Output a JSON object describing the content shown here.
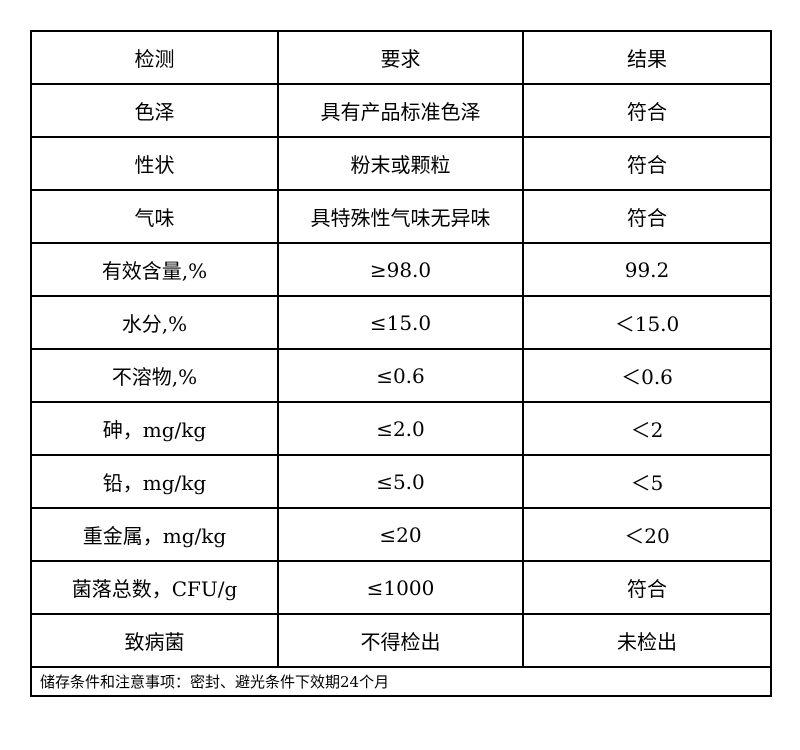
{
  "table": {
    "headers": [
      "检测",
      "要求",
      "结果"
    ],
    "rows": [
      [
        "色泽",
        "具有产品标准色泽",
        "符合"
      ],
      [
        "性状",
        "粉末或颗粒",
        "符合"
      ],
      [
        "气味",
        "具特殊性气味无异味",
        "符合"
      ],
      [
        "有效含量,%",
        "≥98.0",
        "99.2"
      ],
      [
        "水分,%",
        "≤15.0",
        "＜15.0"
      ],
      [
        "不溶物,%",
        "≤0.6",
        "＜0.6"
      ],
      [
        "砷，mg/kg",
        "≤2.0",
        "＜2"
      ],
      [
        "铅，mg/kg",
        "≤5.0",
        "＜5"
      ],
      [
        "重金属，mg/kg",
        "≤20",
        "＜20"
      ],
      [
        "菌落总数，CFU/g",
        "≤1000",
        "符合"
      ],
      [
        "致病菌",
        "不得检出",
        "未检出"
      ]
    ],
    "footer_note": "储存条件和注意事项：密封、避光条件下效期24个月"
  }
}
